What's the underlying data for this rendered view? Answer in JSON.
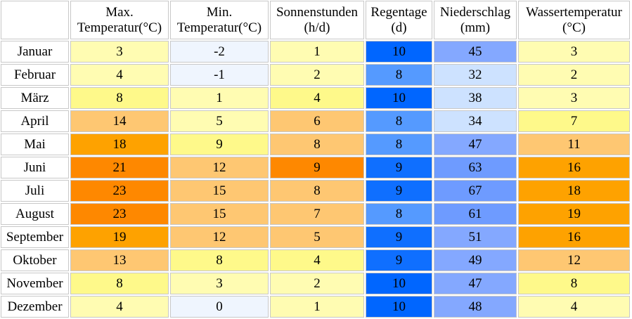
{
  "columns": [
    {
      "line1": "Max.",
      "line2": "Temperatur(°C)"
    },
    {
      "line1": "Min.",
      "line2": "Temperatur(°C)"
    },
    {
      "line1": "Sonnenstunden",
      "line2": "(h/d)"
    },
    {
      "line1": "Regentage",
      "line2": "(d)"
    },
    {
      "line1": "Niederschlag",
      "line2": "(mm)"
    },
    {
      "line1": "Wassertemperatur",
      "line2": "(°C)"
    }
  ],
  "rows": [
    {
      "month": "Januar",
      "cells": [
        {
          "v": "3",
          "bg": "#fffcb2"
        },
        {
          "v": "-2",
          "bg": "#eff5fe"
        },
        {
          "v": "1",
          "bg": "#fffcb2"
        },
        {
          "v": "10",
          "bg": "#0066ff"
        },
        {
          "v": "45",
          "bg": "#84a8ff"
        },
        {
          "v": "3",
          "bg": "#fffcb2"
        }
      ]
    },
    {
      "month": "Februar",
      "cells": [
        {
          "v": "4",
          "bg": "#fffcb2"
        },
        {
          "v": "-1",
          "bg": "#eff5fe"
        },
        {
          "v": "2",
          "bg": "#fffcb2"
        },
        {
          "v": "8",
          "bg": "#559aff"
        },
        {
          "v": "32",
          "bg": "#cde2ff"
        },
        {
          "v": "2",
          "bg": "#fffcb2"
        }
      ]
    },
    {
      "month": "März",
      "cells": [
        {
          "v": "8",
          "bg": "#fef98a"
        },
        {
          "v": "1",
          "bg": "#fffcb2"
        },
        {
          "v": "4",
          "bg": "#fef98a"
        },
        {
          "v": "10",
          "bg": "#0066ff"
        },
        {
          "v": "38",
          "bg": "#cde2ff"
        },
        {
          "v": "3",
          "bg": "#fffcb2"
        }
      ]
    },
    {
      "month": "April",
      "cells": [
        {
          "v": "14",
          "bg": "#fec772"
        },
        {
          "v": "5",
          "bg": "#fffcb2"
        },
        {
          "v": "6",
          "bg": "#fec772"
        },
        {
          "v": "8",
          "bg": "#559aff"
        },
        {
          "v": "34",
          "bg": "#cde2ff"
        },
        {
          "v": "7",
          "bg": "#fef98a"
        }
      ]
    },
    {
      "month": "Mai",
      "cells": [
        {
          "v": "18",
          "bg": "#fea200"
        },
        {
          "v": "9",
          "bg": "#fef98a"
        },
        {
          "v": "8",
          "bg": "#fec772"
        },
        {
          "v": "8",
          "bg": "#559aff"
        },
        {
          "v": "47",
          "bg": "#84a8ff"
        },
        {
          "v": "11",
          "bg": "#fec772"
        }
      ]
    },
    {
      "month": "Juni",
      "cells": [
        {
          "v": "21",
          "bg": "#fe8800"
        },
        {
          "v": "12",
          "bg": "#fec772"
        },
        {
          "v": "9",
          "bg": "#fe8800"
        },
        {
          "v": "9",
          "bg": "#0f6fff"
        },
        {
          "v": "63",
          "bg": "#6e9bff"
        },
        {
          "v": "16",
          "bg": "#fea200"
        }
      ]
    },
    {
      "month": "Juli",
      "cells": [
        {
          "v": "23",
          "bg": "#fe8800"
        },
        {
          "v": "15",
          "bg": "#fec772"
        },
        {
          "v": "8",
          "bg": "#fec772"
        },
        {
          "v": "9",
          "bg": "#0f6fff"
        },
        {
          "v": "67",
          "bg": "#6e9bff"
        },
        {
          "v": "18",
          "bg": "#fea200"
        }
      ]
    },
    {
      "month": "August",
      "cells": [
        {
          "v": "23",
          "bg": "#fe8800"
        },
        {
          "v": "15",
          "bg": "#fec772"
        },
        {
          "v": "7",
          "bg": "#fec772"
        },
        {
          "v": "8",
          "bg": "#559aff"
        },
        {
          "v": "61",
          "bg": "#6e9bff"
        },
        {
          "v": "19",
          "bg": "#fea200"
        }
      ]
    },
    {
      "month": "September",
      "cells": [
        {
          "v": "19",
          "bg": "#fea200"
        },
        {
          "v": "12",
          "bg": "#fec772"
        },
        {
          "v": "5",
          "bg": "#fec772"
        },
        {
          "v": "9",
          "bg": "#0f6fff"
        },
        {
          "v": "51",
          "bg": "#84a8ff"
        },
        {
          "v": "16",
          "bg": "#fea200"
        }
      ]
    },
    {
      "month": "Oktober",
      "cells": [
        {
          "v": "13",
          "bg": "#fec772"
        },
        {
          "v": "8",
          "bg": "#fef98a"
        },
        {
          "v": "4",
          "bg": "#fef98a"
        },
        {
          "v": "9",
          "bg": "#0f6fff"
        },
        {
          "v": "49",
          "bg": "#84a8ff"
        },
        {
          "v": "12",
          "bg": "#fec772"
        }
      ]
    },
    {
      "month": "November",
      "cells": [
        {
          "v": "8",
          "bg": "#fef98a"
        },
        {
          "v": "3",
          "bg": "#fffcb2"
        },
        {
          "v": "2",
          "bg": "#fffcb2"
        },
        {
          "v": "10",
          "bg": "#0066ff"
        },
        {
          "v": "47",
          "bg": "#84a8ff"
        },
        {
          "v": "8",
          "bg": "#fef98a"
        }
      ]
    },
    {
      "month": "Dezember",
      "cells": [
        {
          "v": "4",
          "bg": "#fffcb2"
        },
        {
          "v": "0",
          "bg": "#eff5fe"
        },
        {
          "v": "1",
          "bg": "#fffcb2"
        },
        {
          "v": "10",
          "bg": "#0066ff"
        },
        {
          "v": "48",
          "bg": "#84a8ff"
        },
        {
          "v": "4",
          "bg": "#fffcb2"
        }
      ]
    }
  ]
}
